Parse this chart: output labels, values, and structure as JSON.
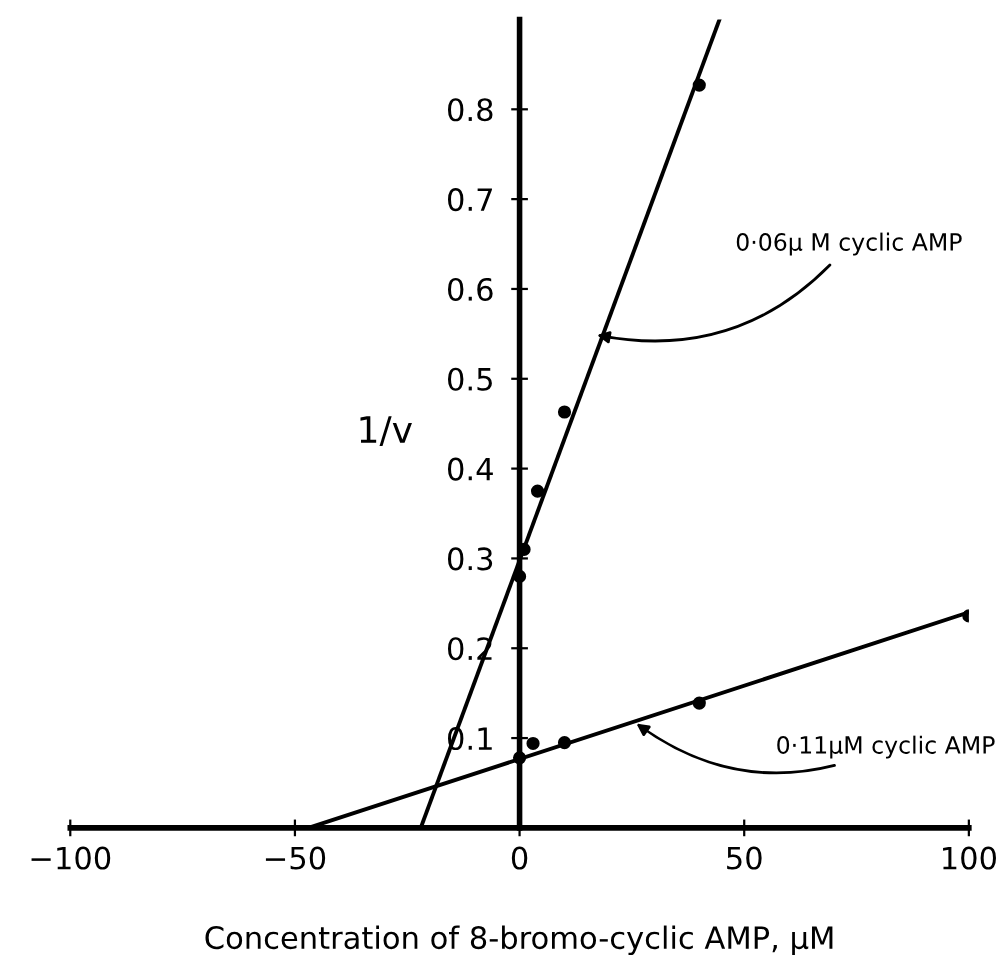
{
  "chart_data": {
    "type": "scatter",
    "xlabel": "Concentration of 8-bromo-cyclic AMP, μM",
    "ylabel": "1/v",
    "xlim": [
      -100,
      100
    ],
    "xticks": [
      {
        "value": -100,
        "label": "−100"
      },
      {
        "value": -50,
        "label": "−50"
      },
      0,
      50,
      100
    ],
    "ylim": [
      0,
      0.9
    ],
    "yticks": [
      0.1,
      0.2,
      0.3,
      0.4,
      0.5,
      0.6,
      0.7,
      0.8
    ],
    "grid": false,
    "legend": false,
    "marker": "circle",
    "series": [
      {
        "color": "#000000",
        "x": [
          0,
          1,
          4,
          10,
          40
        ],
        "values": [
          0.28,
          0.31,
          0.375,
          0.463,
          0.827
        ]
      },
      {
        "type": "line",
        "marker": "none",
        "color": "#000000",
        "x": [
          -22,
          44.5
        ],
        "values": [
          0,
          0.9
        ]
      },
      {
        "color": "#000000",
        "x": [
          0,
          3,
          10,
          40,
          100
        ],
        "values": [
          0.078,
          0.094,
          0.095,
          0.139,
          0.236
        ]
      },
      {
        "type": "line",
        "marker": "none",
        "color": "#000000",
        "x": [
          -47,
          100
        ],
        "values": [
          0,
          0.24
        ]
      }
    ],
    "annotations": [
      {
        "text": "0·06μ M cyclic AMP",
        "x": 16,
        "y": 0.55
      },
      {
        "text": "0·11μM cyclic AMP",
        "x": 25,
        "y": 0.12
      }
    ]
  }
}
